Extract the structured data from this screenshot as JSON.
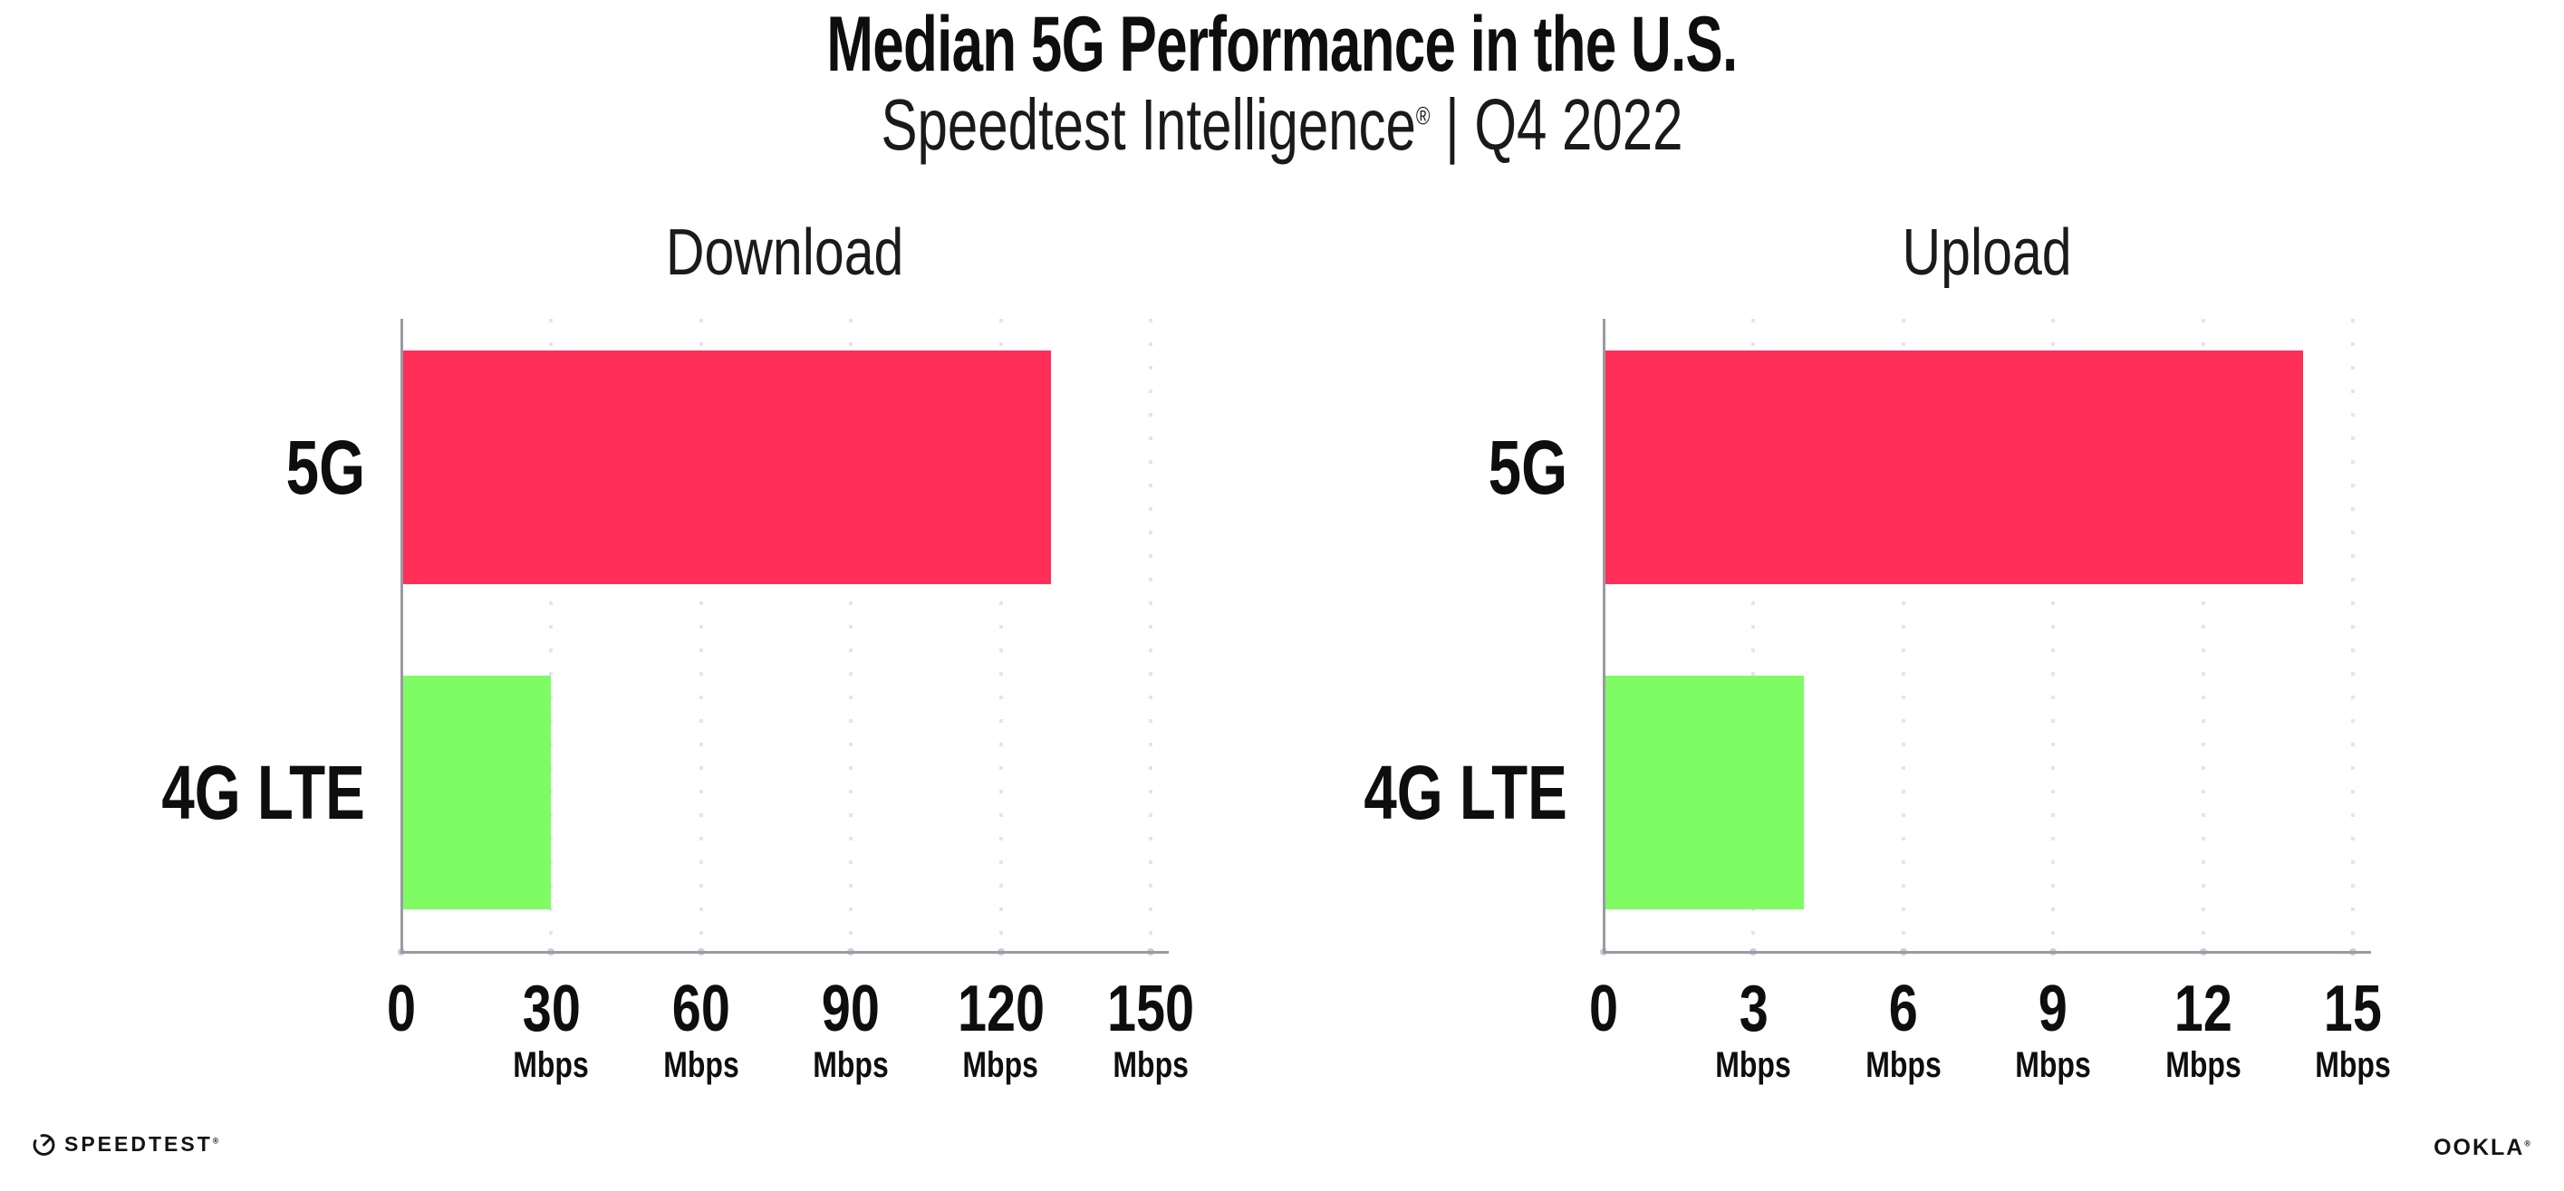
{
  "header": {
    "title": "Median 5G Performance in the U.S.",
    "subtitle_brand": "Speedtest Intelligence",
    "subtitle_reg": "®",
    "subtitle_rest": " | Q4 2022"
  },
  "chart_data": [
    {
      "type": "bar",
      "orientation": "horizontal",
      "title": "Download",
      "categories": [
        "5G",
        "4G LTE"
      ],
      "values": [
        130,
        30
      ],
      "unit": "Mbps",
      "ticks": [
        0,
        30,
        60,
        90,
        120,
        150
      ],
      "tick_unit_label": "Mbps",
      "xlim": [
        0,
        153
      ],
      "grid": true,
      "bar_colors": [
        "#FF2F5A",
        "#7FFB64"
      ]
    },
    {
      "type": "bar",
      "orientation": "horizontal",
      "title": "Upload",
      "categories": [
        "5G",
        "4G LTE"
      ],
      "values": [
        14,
        4
      ],
      "unit": "Mbps",
      "ticks": [
        0,
        3,
        6,
        9,
        12,
        15
      ],
      "tick_unit_label": "Mbps",
      "xlim": [
        0,
        15.3
      ],
      "grid": true,
      "bar_colors": [
        "#FF2F5A",
        "#7FFB64"
      ]
    }
  ],
  "colors": {
    "bar_5g": "#FF2F5A",
    "bar_4g_lte": "#7FFB64",
    "axis": "#9A9AA2",
    "grid_dots": "#E4E4EF",
    "axis_tick_dots": "#CBCBD9",
    "text": "#111111"
  },
  "footer": {
    "speedtest_label": "SPEEDTEST",
    "speedtest_reg": "®",
    "ookla_label": "OOKLA",
    "ookla_reg": "®"
  }
}
